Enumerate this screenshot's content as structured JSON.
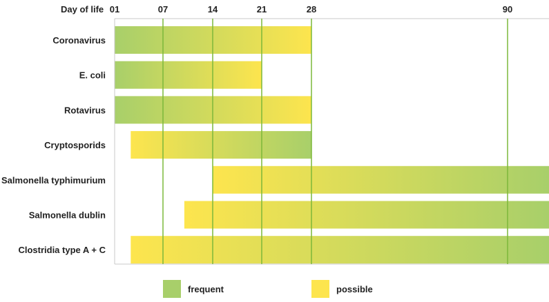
{
  "chart_data": {
    "type": "bar",
    "subtype": "range-timeline",
    "x_axis_label": "Day of life",
    "x_ticks": [
      "01",
      "07",
      "14",
      "21",
      "28",
      "90"
    ],
    "rows": [
      {
        "label": "Coronavirus",
        "start": 1,
        "end": 28,
        "gradient": "frequent-to-possible"
      },
      {
        "label": "E. coli",
        "start": 1,
        "end": 21,
        "gradient": "frequent-to-possible"
      },
      {
        "label": "Rotavirus",
        "start": 1,
        "end": 28,
        "gradient": "frequent-to-possible"
      },
      {
        "label": "Cryptosporids",
        "start": 3,
        "end": 28,
        "gradient": "possible-to-frequent"
      },
      {
        "label": "Salmonella typhimurium",
        "start": 14,
        "end": 96,
        "gradient": "possible-to-frequent"
      },
      {
        "label": "Salmonella dublin",
        "start": 10,
        "end": 96,
        "gradient": "possible-to-frequent"
      },
      {
        "label": "Clostridia type A + C",
        "start": 3,
        "end": 96,
        "gradient": "possible-to-frequent"
      }
    ],
    "legend": [
      {
        "label": "frequent",
        "color": "#a8cf6a"
      },
      {
        "label": "possible",
        "color": "#fde54e"
      }
    ],
    "colors": {
      "frequent": "#a8cf6a",
      "possible": "#fde54e",
      "gridline": "#7cb83a",
      "frame": "#c9c9c9"
    },
    "grid": true,
    "legend_position": "bottom"
  }
}
